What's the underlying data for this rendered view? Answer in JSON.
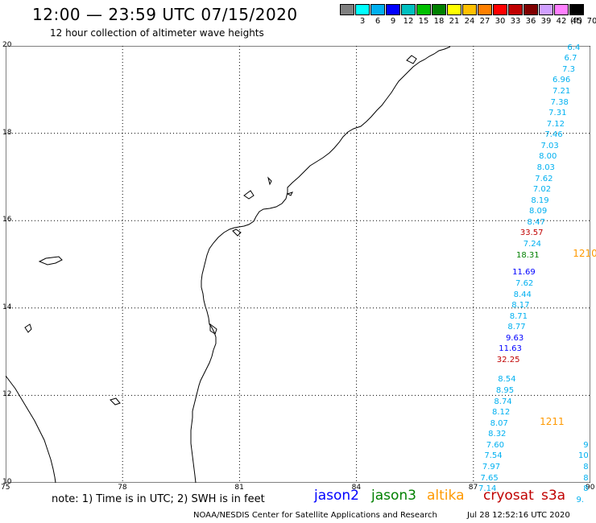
{
  "header": {
    "title": "12:00 — 23:59 UTC 07/15/2020",
    "subtitle": "12 hour collection of altimeter wave heights"
  },
  "colorbar": {
    "swatches": [
      "#808080",
      "#00ffff",
      "#00b0f0",
      "#0000ff",
      "#00c0c0",
      "#00c000",
      "#008000",
      "#ffff00",
      "#ffc000",
      "#ff8000",
      "#ff0000",
      "#c00000",
      "#800000",
      "#d0a0ff",
      "#ff80ff",
      "#000000"
    ],
    "labels": [
      "3",
      "6",
      "9",
      "12",
      "15",
      "18",
      "21",
      "24",
      "27",
      "30",
      "33",
      "36",
      "39",
      "42",
      "45",
      "70"
    ],
    "unit": "(ft)"
  },
  "map": {
    "lat_labels": [
      {
        "text": "20",
        "lat": 20
      },
      {
        "text": "18",
        "lat": 18
      },
      {
        "text": "16",
        "lat": 16
      },
      {
        "text": "14",
        "lat": 14
      },
      {
        "text": "12",
        "lat": 12
      },
      {
        "text": "10",
        "lat": 10
      }
    ],
    "lon_labels": [
      {
        "text": "75",
        "lon": 75
      },
      {
        "text": "78",
        "lon": 78
      },
      {
        "text": "81",
        "lon": 81
      },
      {
        "text": "84",
        "lon": 84
      },
      {
        "text": "87",
        "lon": 87
      },
      {
        "text": "90",
        "lon": 90
      }
    ],
    "grid": true
  },
  "wave_heights": [
    {
      "text": "6.4",
      "lon": 89.8,
      "lat": 19.95,
      "color": "#00b0f0"
    },
    {
      "text": "6.7",
      "lon": 89.72,
      "lat": 19.7,
      "color": "#00b0f0"
    },
    {
      "text": "7.3",
      "lon": 89.67,
      "lat": 19.45,
      "color": "#00b0f0"
    },
    {
      "text": "6.96",
      "lon": 89.55,
      "lat": 19.2,
      "color": "#00b0f0"
    },
    {
      "text": "7.21",
      "lon": 89.55,
      "lat": 18.95,
      "color": "#00b0f0"
    },
    {
      "text": "7.38",
      "lon": 89.5,
      "lat": 18.7,
      "color": "#00b0f0"
    },
    {
      "text": "7.31",
      "lon": 89.45,
      "lat": 18.45,
      "color": "#00b0f0"
    },
    {
      "text": "7.12",
      "lon": 89.4,
      "lat": 18.2,
      "color": "#00b0f0"
    },
    {
      "text": "7.46",
      "lon": 89.35,
      "lat": 17.95,
      "color": "#00b0f0"
    },
    {
      "text": "7.03",
      "lon": 89.25,
      "lat": 17.7,
      "color": "#00b0f0"
    },
    {
      "text": "8.00",
      "lon": 89.2,
      "lat": 17.45,
      "color": "#00b0f0"
    },
    {
      "text": "8.03",
      "lon": 89.15,
      "lat": 17.2,
      "color": "#00b0f0"
    },
    {
      "text": "7.62",
      "lon": 89.1,
      "lat": 16.95,
      "color": "#00b0f0"
    },
    {
      "text": "7.02",
      "lon": 89.05,
      "lat": 16.7,
      "color": "#00b0f0"
    },
    {
      "text": "8.19",
      "lon": 89.0,
      "lat": 16.45,
      "color": "#00b0f0"
    },
    {
      "text": "8.09",
      "lon": 88.95,
      "lat": 16.2,
      "color": "#00b0f0"
    },
    {
      "text": "8.47",
      "lon": 88.9,
      "lat": 15.95,
      "color": "#00b0f0"
    },
    {
      "text": "33.57",
      "lon": 88.85,
      "lat": 15.7,
      "color": "#c00000"
    },
    {
      "text": "7.24",
      "lon": 88.8,
      "lat": 15.45,
      "color": "#00b0f0"
    },
    {
      "text": "18.31",
      "lon": 88.75,
      "lat": 15.2,
      "color": "#008000"
    },
    {
      "text": "11.69",
      "lon": 88.65,
      "lat": 14.8,
      "color": "#0000ff"
    },
    {
      "text": "7.62",
      "lon": 88.6,
      "lat": 14.55,
      "color": "#00b0f0"
    },
    {
      "text": "8.44",
      "lon": 88.55,
      "lat": 14.3,
      "color": "#00b0f0"
    },
    {
      "text": "8.17",
      "lon": 88.5,
      "lat": 14.05,
      "color": "#00b0f0"
    },
    {
      "text": "8.71",
      "lon": 88.45,
      "lat": 13.8,
      "color": "#00b0f0"
    },
    {
      "text": "8.77",
      "lon": 88.4,
      "lat": 13.55,
      "color": "#00b0f0"
    },
    {
      "text": "9.63",
      "lon": 88.35,
      "lat": 13.3,
      "color": "#0000ff"
    },
    {
      "text": "11.63",
      "lon": 88.3,
      "lat": 13.05,
      "color": "#0000ff"
    },
    {
      "text": "32.25",
      "lon": 88.25,
      "lat": 12.8,
      "color": "#c00000"
    },
    {
      "text": "8.54",
      "lon": 88.15,
      "lat": 12.35,
      "color": "#00b0f0"
    },
    {
      "text": "8.95",
      "lon": 88.1,
      "lat": 12.1,
      "color": "#00b0f0"
    },
    {
      "text": "8.74",
      "lon": 88.05,
      "lat": 11.85,
      "color": "#00b0f0"
    },
    {
      "text": "8.12",
      "lon": 88.0,
      "lat": 11.6,
      "color": "#00b0f0"
    },
    {
      "text": "8.07",
      "lon": 87.95,
      "lat": 11.35,
      "color": "#00b0f0"
    },
    {
      "text": "8.32",
      "lon": 87.9,
      "lat": 11.1,
      "color": "#00b0f0"
    },
    {
      "text": "7.60",
      "lon": 87.85,
      "lat": 10.85,
      "color": "#00b0f0"
    },
    {
      "text": "7.54",
      "lon": 87.8,
      "lat": 10.6,
      "color": "#00b0f0"
    },
    {
      "text": "7.97",
      "lon": 87.75,
      "lat": 10.35,
      "color": "#00b0f0"
    },
    {
      "text": "7.65",
      "lon": 87.7,
      "lat": 10.1,
      "color": "#00b0f0"
    },
    {
      "text": "7.14",
      "lon": 87.65,
      "lat": 9.85,
      "color": "#00b0f0"
    },
    {
      "text": "9",
      "lon": 89.95,
      "lat": 10.85,
      "color": "#00b0f0"
    },
    {
      "text": "10",
      "lon": 89.95,
      "lat": 10.6,
      "color": "#00b0f0"
    },
    {
      "text": "8",
      "lon": 89.95,
      "lat": 10.35,
      "color": "#00b0f0"
    },
    {
      "text": "8",
      "lon": 89.95,
      "lat": 10.1,
      "color": "#00b0f0"
    },
    {
      "text": "8",
      "lon": 89.95,
      "lat": 9.85,
      "color": "#00b0f0"
    },
    {
      "text": "9.",
      "lon": 89.9,
      "lat": 9.6,
      "color": "#00b0f0"
    }
  ],
  "time_labels": [
    {
      "text": "1210",
      "lon": 89.55,
      "lat": 15.25,
      "color": "#ff9900"
    },
    {
      "text": "1211",
      "lon": 88.7,
      "lat": 11.4,
      "color": "#ff9900"
    }
  ],
  "footer": {
    "note": "note: 1) Time is in UTC; 2) SWH is in feet",
    "satellites": [
      {
        "name": "jason2",
        "color": "#0000ff"
      },
      {
        "name": "jason3",
        "color": "#008000"
      },
      {
        "name": "altika",
        "color": "#ff9900"
      },
      {
        "name": "cryosat",
        "color": "#c00000"
      },
      {
        "name": "s3a",
        "color": "#c00000"
      }
    ],
    "credit": "NOAA/NESDIS Center for Satellite Applications and Research",
    "timestamp": "Jul 28 12:52:16 UTC 2020"
  }
}
